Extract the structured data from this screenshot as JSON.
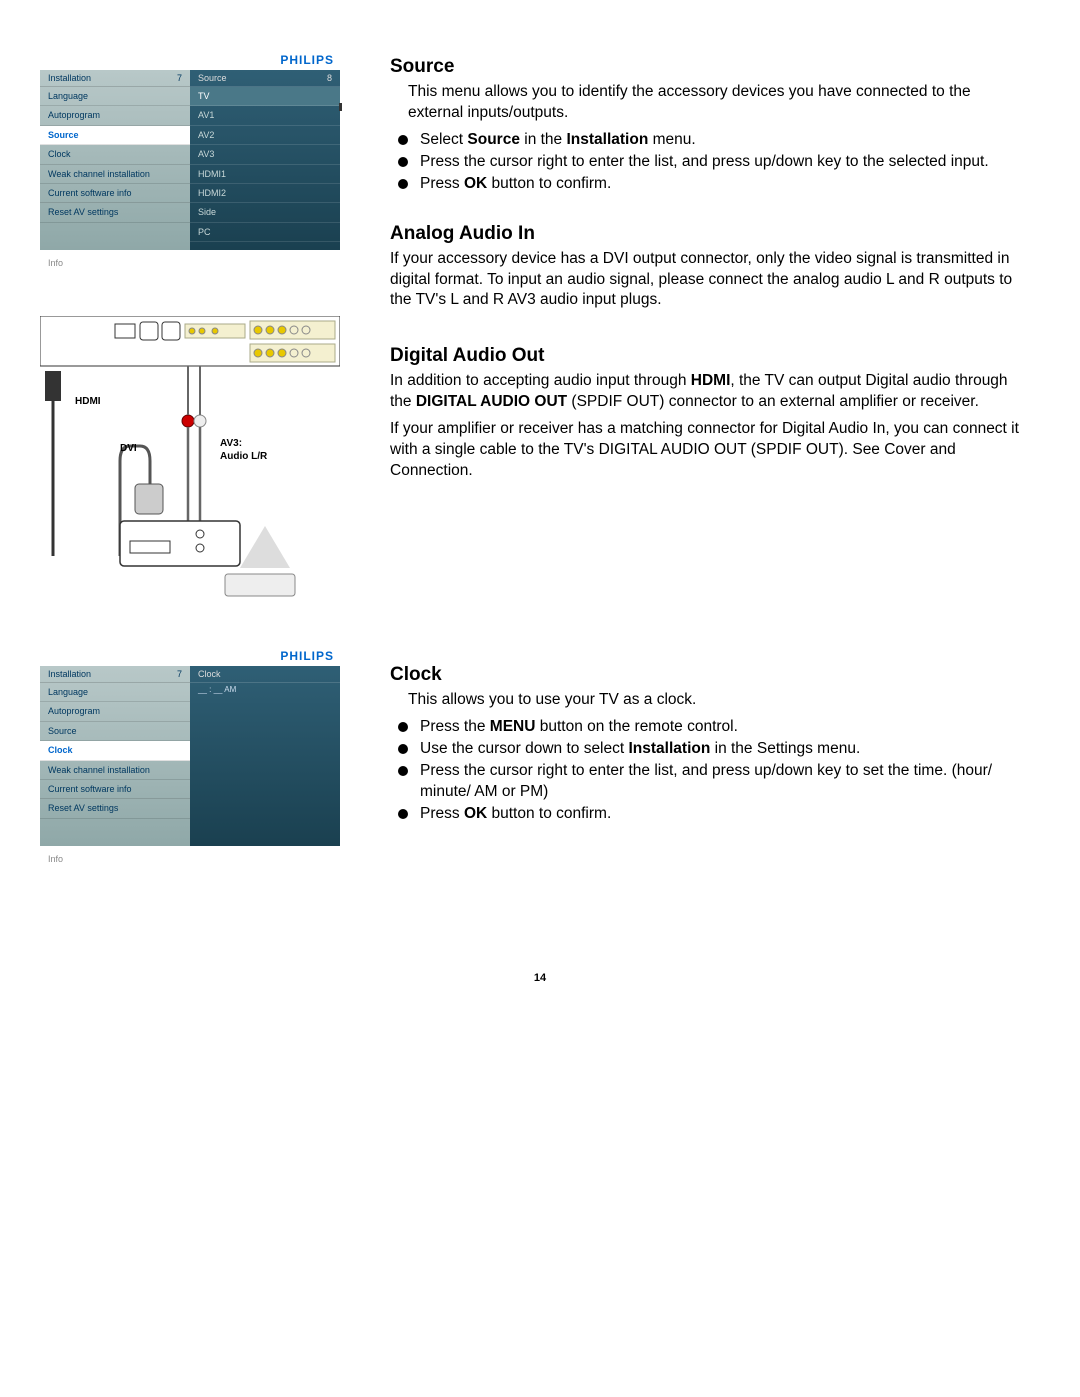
{
  "brand": "PHILIPS",
  "menu1": {
    "left_title": "Installation",
    "left_num": "7",
    "right_title": "Source",
    "right_num": "8",
    "left_items": [
      "Language",
      "Autoprogram",
      "Source",
      "Clock",
      "Weak channel installation",
      "Current software info",
      "Reset AV settings"
    ],
    "left_selected": 2,
    "right_items": [
      "TV",
      "AV1",
      "AV2",
      "AV3",
      "HDMI1",
      "HDMI2",
      "Side",
      "PC"
    ],
    "right_selected": 0,
    "info": "Info"
  },
  "menu2": {
    "left_title": "Installation",
    "left_num": "7",
    "right_title": "Clock",
    "left_items": [
      "Language",
      "Autoprogram",
      "Source",
      "Clock",
      "Weak channel installation",
      "Current software info",
      "Reset AV settings"
    ],
    "left_selected": 3,
    "clock_value": "__ : __  AM",
    "info": "Info"
  },
  "diagram": {
    "hdmi": "HDMI",
    "dvi": "DVI",
    "av3": "AV3:",
    "audio_lr": "Audio L/R"
  },
  "source": {
    "title": "Source",
    "desc": "This menu allows you to identify the accessory devices you have connected to the external inputs/outputs.",
    "b1a": "Select ",
    "b1b": "Source",
    "b1c": " in the ",
    "b1d": "Installation",
    "b1e": " menu.",
    "b2": "Press the cursor right to enter the list, and press up/down key to the selected input.",
    "b3a": "Press ",
    "b3b": "OK",
    "b3c": " button to confirm."
  },
  "analog": {
    "title": "Analog Audio In",
    "desc": "If your accessory device has a DVI output connector, only the video signal is transmitted in digital format. To input an audio signal, please connect the analog audio L and R outputs to the TV's L and R AV3 audio input plugs."
  },
  "digital": {
    "title": "Digital Audio Out",
    "p1a": "In addition to accepting audio input through ",
    "p1b": "HDMI",
    "p1c": ", the TV can output Digital audio through the ",
    "p1d": "DIGITAL AUDIO OUT",
    "p1e": " (SPDIF OUT) connector to an external amplifier or receiver.",
    "p2": "If your amplifier or receiver has a matching connector for Digital Audio In, you can connect it with a single cable to the TV's DIGITAL AUDIO OUT (SPDIF OUT). See Cover and Connection."
  },
  "clock": {
    "title": "Clock",
    "desc": "This allows you to use your TV as a clock.",
    "b1a": "Press the ",
    "b1b": "MENU",
    "b1c": " button on the remote control.",
    "b2a": "Use the cursor down to select ",
    "b2b": "Installation",
    "b2c": " in the Settings menu.",
    "b3": "Press the cursor right to enter the list, and press up/down key to set the time. (hour/ minute/ AM or PM)",
    "b4a": "Press ",
    "b4b": "OK",
    "b4c": " button to confirm."
  },
  "page": "14"
}
